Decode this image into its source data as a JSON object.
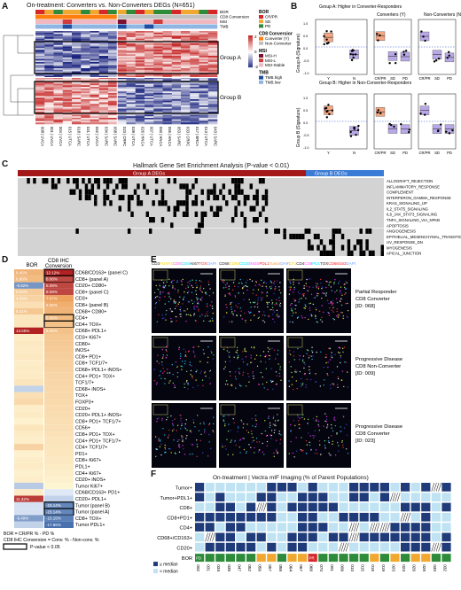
{
  "panels": {
    "A": {
      "letter": "A",
      "title": "On-treatment: Converters vs. Non-Converters DEGs (N=651)",
      "row_labels": [
        "BOR",
        "CD8 Conversion",
        "MSI",
        "TMB"
      ],
      "group_labels": [
        "Group A",
        "Group B"
      ],
      "samples": [
        "008 | UVCA",
        "001 | UVCA",
        "004 | UVCA",
        "015 | UTCA",
        "018 | SARC",
        "021 | UTCA",
        "062 | UVCA",
        "034 | SARC",
        "058 | SARC",
        "023 | CRPC",
        "039 | UTCA",
        "026 | HNCA",
        "007 | UTCA",
        "050 | HNCA",
        "055 | HNCA",
        "053 | SARC",
        "033 | CRPC",
        "017 | BRCA",
        "013 | UTCA",
        "043 | SARC"
      ],
      "scale_ticks": [
        "2",
        "0",
        "-2"
      ],
      "legend": {
        "bor": {
          "title": "BOR",
          "items": [
            "CR/PR",
            "SD",
            "PD"
          ],
          "colors": [
            "#d62728",
            "#f0a830",
            "#2e8b3a"
          ]
        },
        "conv": {
          "title": "CD8 Conversion",
          "items": [
            "Converter (Y)",
            "Non-Converter (N)"
          ],
          "colors": [
            "#ff7f0e",
            "#c0c0c0"
          ]
        },
        "msi": {
          "title": "MSI",
          "items": [
            "MSI-H",
            "MSI-L",
            "MSI-Stable"
          ],
          "colors": [
            "#7b1030",
            "#d23b3b",
            "#f0b8c0"
          ]
        },
        "tmb": {
          "title": "TMB",
          "items": [
            "TMB.high",
            "TMB.low"
          ],
          "colors": [
            "#1f4e9e",
            "#8fb6e3"
          ]
        }
      }
    },
    "B": {
      "letter": "B",
      "row1_label": "Group A: Higher in Converter-Responders",
      "row2_label": "Group B: Higher in Non-Converter-Responders",
      "sub_titles": [
        "Converters (Y)",
        "Non-Converters (N)"
      ],
      "ylabel": "Group A (Signature)",
      "ylabel2": "Group B (Signature)",
      "x_yn": [
        "Y",
        "N"
      ],
      "x_bor": [
        "CR/PR",
        "SD",
        "PD"
      ],
      "yticks": [
        "1.0",
        "0.5",
        "0.0",
        "-0.5",
        "-1.0"
      ]
    },
    "C": {
      "letter": "C",
      "title": "Hallmark Gene Set Enrichment Analysis (P-value < 0.01)",
      "groupA": "Group A DEGs",
      "groupB": "Group B DEGs",
      "pathways": [
        "ALLOGRAFT_REJECTION",
        "INFLAMMATORY_RESPONSE",
        "COMPLEMENT",
        "INTERFERON_GAMMA_RESPONSE",
        "KRAS_SIGNALING_UP",
        "IL2_STAT5_SIGNALING",
        "IL6_JAK_STAT3_SIGNALING",
        "TNFA_SIGNALING_VIA_NFKB",
        "APOPTOSIS",
        "ANGIOGENESIS",
        "EPITHELIAL_MESENCHYMAL_TRANSITION",
        "UV_RESPONSE_DN",
        "MYOGENESIS",
        "APICAL_JUNCTION"
      ]
    },
    "D": {
      "letter": "D",
      "col1": "BOR",
      "col2_line1": "CD8 IHC",
      "col2_line2": "Conversion",
      "rows": [
        {
          "label": "CD68/CD163+ (panel C)",
          "bor": "8.45%",
          "conv": "12.12%"
        },
        {
          "label": "CD8+ (panel A)",
          "bor": "6.88%",
          "conv": "8.08%"
        },
        {
          "label": "CD20+ CD80+",
          "bor": "-9.92%",
          "conv": "8.08%"
        },
        {
          "label": "CD8+ (panel C)",
          "bor": "5.04%",
          "conv": "8.08%"
        },
        {
          "label": "CD3+",
          "bor": "4.33%",
          "conv": "7.07%"
        },
        {
          "label": "CD8+ (panel B)",
          "bor": "",
          "conv": "6.06%"
        },
        {
          "label": "CD68+ CD80+",
          "bor": "5.41%",
          "conv": ""
        },
        {
          "label": "CD4+",
          "bor": "",
          "conv": "5.05%"
        },
        {
          "label": "CD4+ TOX+",
          "bor": "",
          "conv": ""
        },
        {
          "label": "CD68+ PDL1+",
          "bor": "13.55%",
          "conv": "5.05%"
        },
        {
          "label": "CD3+ Ki67+",
          "bor": "",
          "conv": ""
        },
        {
          "label": "CD80+",
          "bor": "",
          "conv": ""
        },
        {
          "label": "iNOS+",
          "bor": "",
          "conv": ""
        },
        {
          "label": "CD8+ PD1+",
          "bor": "",
          "conv": ""
        },
        {
          "label": "CD8+ TCF1/7+",
          "bor": "",
          "conv": ""
        },
        {
          "label": "CD68+ PDL1+ iNOS+",
          "bor": "",
          "conv": ""
        },
        {
          "label": "CD4+ PD1+ TOX+",
          "bor": "",
          "conv": ""
        },
        {
          "label": "TCF1/7+",
          "bor": "",
          "conv": ""
        },
        {
          "label": "CD68+ iNOS+",
          "bor": "",
          "conv": ""
        },
        {
          "label": "TOX+",
          "bor": "",
          "conv": ""
        },
        {
          "label": "FOXP3+",
          "bor": "",
          "conv": ""
        },
        {
          "label": "CD20+",
          "bor": "",
          "conv": ""
        },
        {
          "label": "CD20+ PDL1+ iNOS+",
          "bor": "",
          "conv": ""
        },
        {
          "label": "CD8+ PD1+ TCF1/7+",
          "bor": "",
          "conv": ""
        },
        {
          "label": "CD56+",
          "bor": "",
          "conv": ""
        },
        {
          "label": "CD8+ PD1+ TOX+",
          "bor": "",
          "conv": ""
        },
        {
          "label": "CD4+ PD1+ TCF1/7+",
          "bor": "",
          "conv": ""
        },
        {
          "label": "CD4+ TCF1/7+",
          "bor": "",
          "conv": ""
        },
        {
          "label": "PD1+",
          "bor": "",
          "conv": ""
        },
        {
          "label": "CD8+ Ki67+",
          "bor": "",
          "conv": ""
        },
        {
          "label": "PDL1+",
          "bor": "",
          "conv": ""
        },
        {
          "label": "CD4+ Ki67+",
          "bor": "",
          "conv": ""
        },
        {
          "label": "CD20+ iNOS+",
          "bor": "",
          "conv": ""
        },
        {
          "label": "Tumor Ki67+",
          "bor": "",
          "conv": ""
        },
        {
          "label": "CD68/CD163+ PD1+",
          "bor": "",
          "conv": ""
        },
        {
          "label": "CD20+ PDL1+",
          "bor": "11.32%",
          "conv": ""
        },
        {
          "label": "Tumor (panel B)",
          "bor": "",
          "conv": "-15.14%"
        },
        {
          "label": "Tumor (panel A)",
          "bor": "",
          "conv": "-15.14%"
        },
        {
          "label": "CD8+ TOX+",
          "bor": "-9.49%",
          "conv": "-15.15%"
        },
        {
          "label": "Tumor PDL1+",
          "bor": "",
          "conv": "-17.86%"
        }
      ],
      "foot1": "BOR = CR/PR % - PD %",
      "foot2": "CD8 IHC Conversion = Conv. % - Non-conv. %",
      "foot3": "P-value < 0.05"
    },
    "E": {
      "letter": "E",
      "panel_headers": [
        {
          "parts": [
            "CD3",
            "FOXP3",
            "CD8",
            "CD56",
            "Ki67",
            "TOX",
            "DAPI"
          ],
          "colors": [
            "#ffffff",
            "#ffd400",
            "#ff4dff",
            "#00e0ff",
            "#ffffff",
            "#ff2020",
            "#6fa0ff"
          ]
        },
        {
          "parts": [
            "CD68",
            "CD80",
            "CD20",
            "iNOS",
            "PDL1",
            "Tumor",
            "DAPI"
          ],
          "colors": [
            "#ffffff",
            "#ffd400",
            "#00e0ff",
            "#ff4dff",
            "#ff2020",
            "#ff9933",
            "#6fa0ff"
          ]
        },
        {
          "parts": [
            "TCF1",
            "CD4",
            "CD8",
            "PD1",
            "TOX",
            "CD68/163",
            "DAPI"
          ],
          "colors": [
            "#ffd400",
            "#ffffff",
            "#ff4dff",
            "#00e0ff",
            "#ffffff",
            "#ff2020",
            "#6fa0ff"
          ]
        }
      ],
      "row_captions": [
        [
          "Partial Responder",
          "CD8 Converter",
          "[ID: 068]"
        ],
        [
          "Progressive Disease",
          "CD8 Non-Converter",
          "[ID: 009]"
        ],
        [
          "Progressive Disease",
          "CD8 Converter",
          "[ID: 023]"
        ]
      ]
    },
    "F": {
      "letter": "F",
      "title": "On-treatment | Vectra mIF Imaging (% of Parent Populations)",
      "rows": [
        "Tumor+",
        "Tumor+PDL1+",
        "CD8+",
        "CD8+PD1+",
        "CD4+",
        "CD68+/CD163+",
        "CD20+"
      ],
      "bor_label": "BOR",
      "legend_hi": "≥ median",
      "legend_lo": "< median",
      "ids": [
        "002",
        "031",
        "034",
        "036",
        "047",
        "052",
        "056",
        "057",
        "058",
        "064",
        "067",
        "068",
        "070",
        "001",
        "009",
        "010",
        "015",
        "018",
        "019",
        "020",
        "023",
        "026",
        "028",
        "030",
        "032"
      ],
      "bor_codes": [
        "PD",
        "PD",
        "PD",
        "PD",
        "PD",
        "PD",
        "SD",
        "SD",
        "PD",
        "SD",
        "SD",
        "PR",
        "PD",
        "PD",
        "PD",
        "PD",
        "PD",
        "SD",
        "PD",
        "SD",
        "PD",
        "SD",
        "SD",
        "PD",
        "PD"
      ],
      "bor_text": [
        "PD",
        "",
        "",
        "",
        "",
        "",
        "",
        "",
        "",
        "",
        "",
        "PR",
        "",
        "",
        "",
        "",
        "",
        "",
        "",
        "",
        "",
        "",
        "",
        "",
        ""
      ]
    }
  },
  "colors": {
    "heat_high": "#c62828",
    "heat_low": "#1a237e",
    "navy": "#1f3b7a",
    "light": "#bfe3f2",
    "bor_pr": "#d62728",
    "bor_sd": "#f0a830",
    "bor_pd": "#2e8b3a"
  }
}
